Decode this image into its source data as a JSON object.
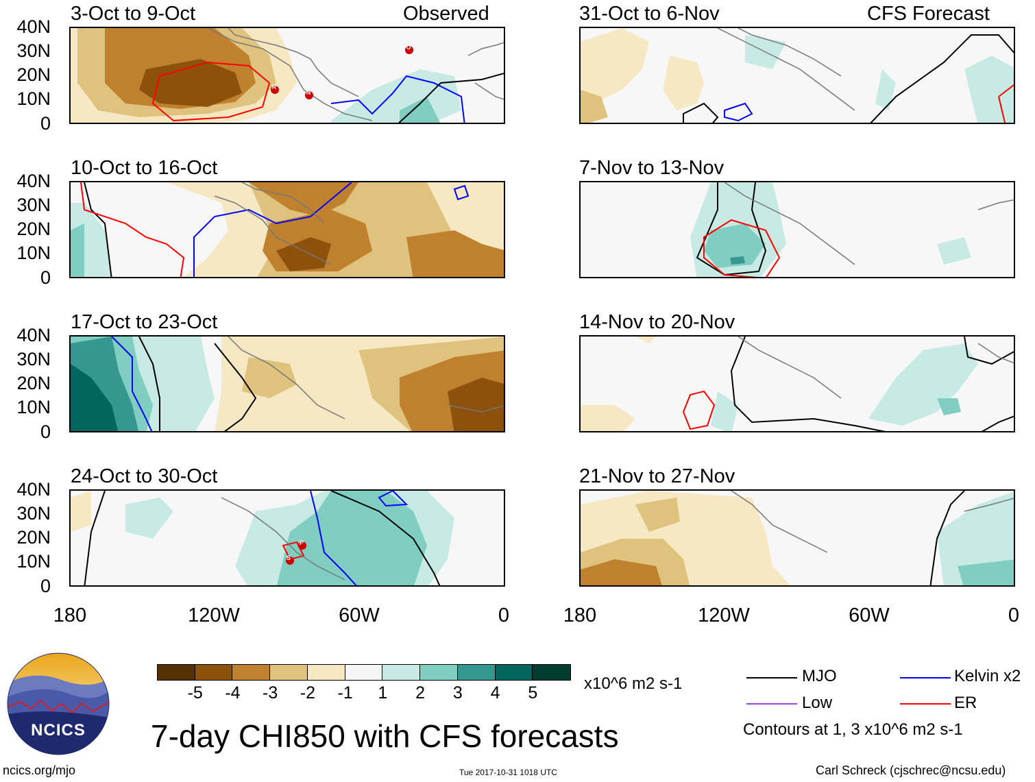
{
  "left_header": "Observed",
  "right_header": "CFS Forecast",
  "panels_left": [
    {
      "title": "3-Oct to 9-Oct"
    },
    {
      "title": "10-Oct to 16-Oct"
    },
    {
      "title": "17-Oct to 23-Oct"
    },
    {
      "title": "24-Oct to 30-Oct"
    }
  ],
  "panels_right": [
    {
      "title": "31-Oct to 6-Nov"
    },
    {
      "title": "7-Nov to 13-Nov"
    },
    {
      "title": "14-Nov to 20-Nov"
    },
    {
      "title": "21-Nov to 27-Nov"
    }
  ],
  "y_axis_labels": [
    "40N",
    "30N",
    "20N",
    "10N",
    "0"
  ],
  "x_axis_labels": [
    "180",
    "120W",
    "60W",
    "0"
  ],
  "colorbar": {
    "labels": [
      "-5",
      "-4",
      "-3",
      "-2",
      "-1",
      "1",
      "2",
      "3",
      "4",
      "5"
    ],
    "colors": [
      "#543005",
      "#8c510a",
      "#bf812d",
      "#dfc27d",
      "#f6e8c3",
      "#f5f5f5",
      "#c7eae5",
      "#80cdc1",
      "#35978f",
      "#01665e",
      "#003c30"
    ],
    "units": "x10^6 m2 s-1"
  },
  "legend": {
    "mjo": {
      "label": "MJO",
      "color": "#000000"
    },
    "kelvin": {
      "label": "Kelvin x2",
      "color": "#0000ff"
    },
    "low": {
      "label": "Low",
      "color": "#a040e0"
    },
    "er": {
      "label": "ER",
      "color": "#ff0000"
    },
    "contours_note": "Contours at 1, 3 x10^6 m2 s-1"
  },
  "main_title": "7-day CHI850 with CFS forecasts",
  "logo_text": "NCICS",
  "footer": {
    "url": "ncics.org/mjo",
    "timestamp": "Tue 2017-10-31 1018 UTC",
    "credit": "Carl Schreck (cjschrec@ncsu.edu)"
  },
  "storm_markers": [
    {
      "panel": "3-Oct to 9-Oct",
      "letter": "O"
    },
    {
      "panel": "3-Oct to 9-Oct",
      "letter": "R"
    },
    {
      "panel": "3-Oct to 9-Oct",
      "letter": "N"
    },
    {
      "panel": "24-Oct to 30-Oct",
      "letter": "P"
    },
    {
      "panel": "24-Oct to 30-Oct",
      "letter": "S"
    }
  ]
}
